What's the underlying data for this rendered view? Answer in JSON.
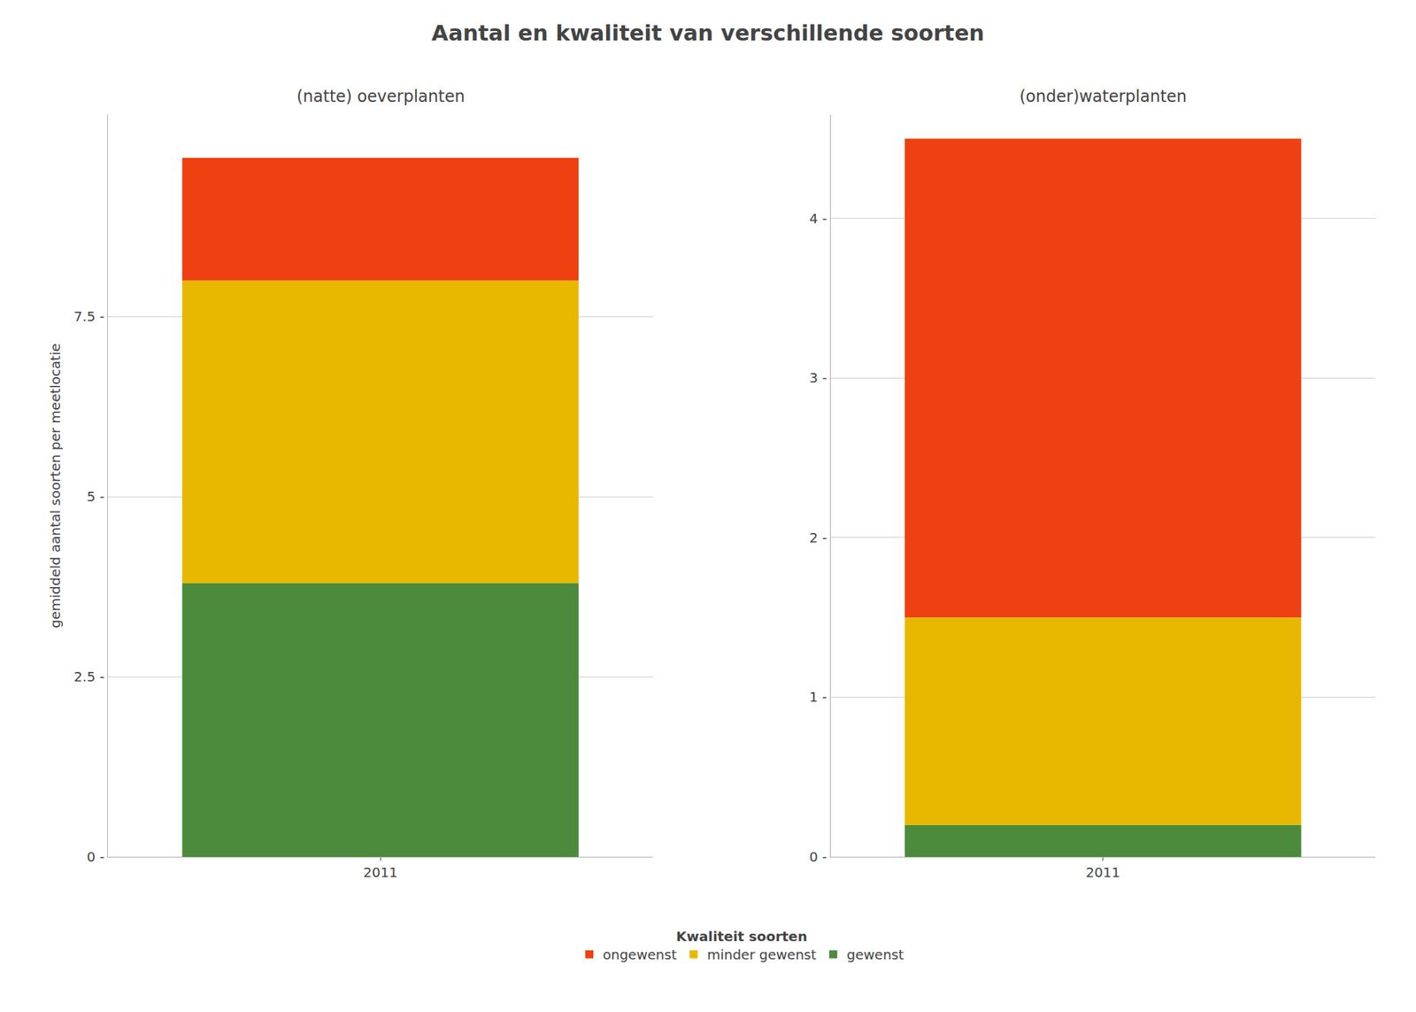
{
  "title": "Aantal en kwaliteit van verschillende soorten",
  "legend_title": "Kwaliteit soorten",
  "legend": "bottom",
  "chart_data": [
    {
      "type": "bar",
      "stacked": true,
      "grid": true,
      "title": "(natte) oeverplanten",
      "ylabel": "gemiddeld aantal soorten per meetlocatie",
      "categories": [
        "2011"
      ],
      "series": [
        {
          "name": "gewenst",
          "color": "#4B8B3B",
          "values": [
            3.8
          ]
        },
        {
          "name": "minder gewenst",
          "color": "#E8B800",
          "values": [
            4.2
          ]
        },
        {
          "name": "ongewenst",
          "color": "#EE4011",
          "values": [
            1.7
          ]
        }
      ],
      "ylim": [
        0,
        10.3
      ],
      "yticks": [
        {
          "value": 0.0,
          "label": "0 -"
        },
        {
          "value": 2.5,
          "label": "2.5 -"
        },
        {
          "value": 5.0,
          "label": "5 -"
        },
        {
          "value": 7.5,
          "label": "7.5 -"
        }
      ]
    },
    {
      "type": "bar",
      "stacked": true,
      "grid": true,
      "title": "(onder)waterplanten",
      "categories": [
        "2011"
      ],
      "series": [
        {
          "name": "gewenst",
          "color": "#4B8B3B",
          "values": [
            0.2
          ]
        },
        {
          "name": "minder gewenst",
          "color": "#E8B800",
          "values": [
            1.3
          ]
        },
        {
          "name": "ongewenst",
          "color": "#EE4011",
          "values": [
            3.0
          ]
        }
      ],
      "ylim": [
        0,
        4.65
      ],
      "yticks": [
        {
          "value": 0,
          "label": "0 -"
        },
        {
          "value": 1,
          "label": "1 -"
        },
        {
          "value": 2,
          "label": "2 -"
        },
        {
          "value": 3,
          "label": "3 -"
        },
        {
          "value": 4,
          "label": "4 -"
        }
      ]
    }
  ]
}
